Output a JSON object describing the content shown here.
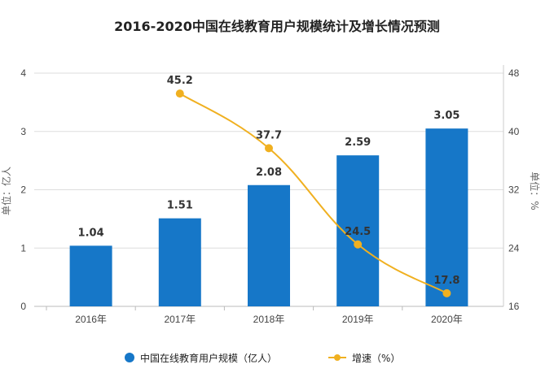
{
  "chart_data": {
    "type": "bar+line",
    "title": "2016-2020中国在线教育用户规模统计及增长情况预测",
    "categories": [
      "2016年",
      "2017年",
      "2018年",
      "2019年",
      "2020年"
    ],
    "series": [
      {
        "name": "中国在线教育用户规模（亿人）",
        "type": "bar",
        "axis": "left",
        "values": [
          1.04,
          1.51,
          2.08,
          2.59,
          3.05
        ],
        "labels": [
          "1.04",
          "1.51",
          "2.08",
          "2.59",
          "3.05"
        ],
        "color": "#1677c8"
      },
      {
        "name": "增速（%）",
        "type": "line",
        "axis": "right",
        "values": [
          null,
          45.2,
          37.7,
          24.5,
          17.8
        ],
        "labels": [
          "",
          "45.2",
          "37.7",
          "24.5",
          "17.8"
        ],
        "color": "#f0b020"
      }
    ],
    "ylabel_left": "单位：亿人",
    "ylabel_right": "单位：%",
    "ylim_left": [
      0,
      4
    ],
    "yticks_left": [
      "0",
      "1",
      "2",
      "3",
      "4"
    ],
    "ylim_right": [
      16,
      48
    ],
    "yticks_right": [
      "16",
      "24",
      "32",
      "40",
      "48"
    ],
    "grid": true,
    "legend": "bottom"
  }
}
